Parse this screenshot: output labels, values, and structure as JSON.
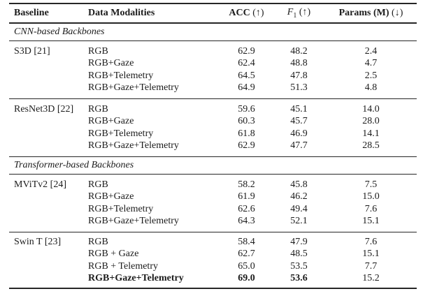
{
  "header": {
    "baseline": "Baseline",
    "modalities": "Data Modalities",
    "acc": "ACC",
    "acc_arrow": "(↑)",
    "f1_letter": "F",
    "f1_sub": "1",
    "f1_arrow": "(↑)",
    "params": "Params (M)",
    "params_arrow": "(↓)"
  },
  "sections": [
    {
      "title": "CNN-based Backbones",
      "groups": [
        {
          "baseline": "S3D [21]",
          "rows": [
            {
              "modality": "RGB",
              "acc": "62.9",
              "f1": "48.2",
              "params": "2.4"
            },
            {
              "modality": "RGB+Gaze",
              "acc": "62.4",
              "f1": "48.8",
              "params": "4.7"
            },
            {
              "modality": "RGB+Telemetry",
              "acc": "64.5",
              "f1": "47.8",
              "params": "2.5"
            },
            {
              "modality": "RGB+Gaze+Telemetry",
              "acc": "64.9",
              "f1": "51.3",
              "params": "4.8"
            }
          ]
        },
        {
          "baseline": "ResNet3D [22]",
          "rows": [
            {
              "modality": "RGB",
              "acc": "59.6",
              "f1": "45.1",
              "params": "14.0"
            },
            {
              "modality": "RGB+Gaze",
              "acc": "60.3",
              "f1": "45.7",
              "params": "28.0"
            },
            {
              "modality": "RGB+Telemetry",
              "acc": "61.8",
              "f1": "46.9",
              "params": "14.1"
            },
            {
              "modality": "RGB+Gaze+Telemetry",
              "acc": "62.9",
              "f1": "47.7",
              "params": "28.5"
            }
          ]
        }
      ]
    },
    {
      "title": "Transformer-based Backbones",
      "groups": [
        {
          "baseline": "MViTv2 [24]",
          "rows": [
            {
              "modality": "RGB",
              "acc": "58.2",
              "f1": "45.8",
              "params": "7.5"
            },
            {
              "modality": "RGB+Gaze",
              "acc": "61.9",
              "f1": "46.2",
              "params": "15.0"
            },
            {
              "modality": "RGB+Telemetry",
              "acc": "62.6",
              "f1": "49.4",
              "params": "7.6"
            },
            {
              "modality": "RGB+Gaze+Telemetry",
              "acc": "64.3",
              "f1": "52.1",
              "params": "15.1"
            }
          ]
        },
        {
          "baseline": "Swin T [23]",
          "rows": [
            {
              "modality": "RGB",
              "acc": "58.4",
              "f1": "47.9",
              "params": "7.6"
            },
            {
              "modality": "RGB + Gaze",
              "acc": "62.7",
              "f1": "48.5",
              "params": "15.1"
            },
            {
              "modality": "RGB + Telemetry",
              "acc": "65.0",
              "f1": "53.5",
              "params": "7.7"
            },
            {
              "modality": "RGB+Gaze+Telemetry",
              "acc": "69.0",
              "f1": "53.6",
              "params": "15.2"
            }
          ]
        }
      ]
    }
  ]
}
